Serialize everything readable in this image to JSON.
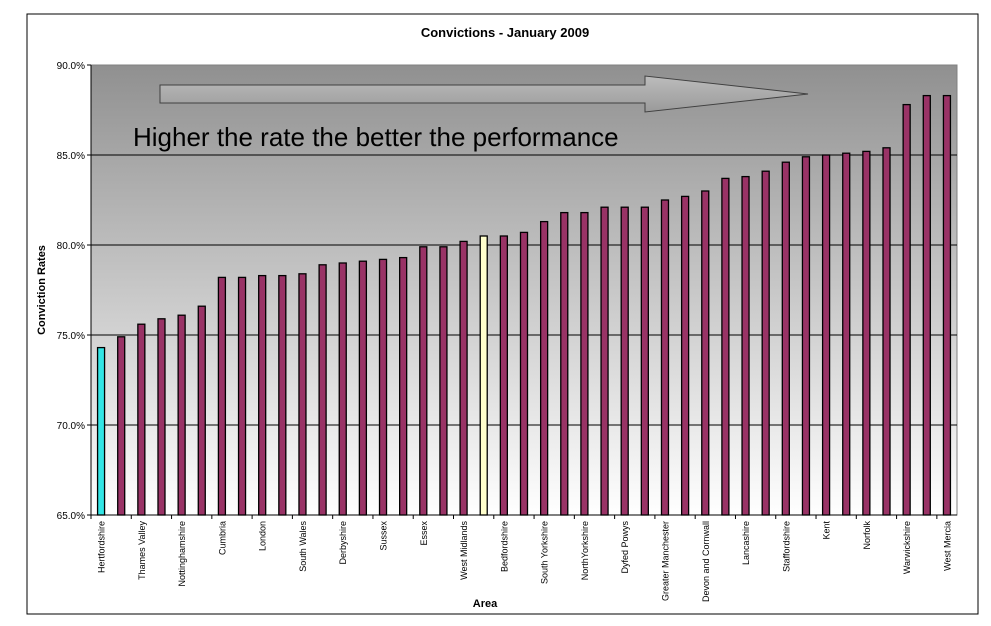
{
  "chart_data": {
    "type": "bar",
    "title": "Convictions - January 2009",
    "xlabel": "Area",
    "ylabel": "Conviction Rates",
    "annotation": "Higher the rate the better the performance",
    "ylim": [
      65.0,
      90.0
    ],
    "yticks": [
      65.0,
      70.0,
      75.0,
      80.0,
      85.0,
      90.0
    ],
    "ytick_labels": [
      "65.0%",
      "70.0%",
      "75.0%",
      "80.0%",
      "85.0%",
      "90.0%"
    ],
    "grid": true,
    "legend": "none",
    "colors": {
      "bar": "#993366",
      "highlight_low": "#33e5e5",
      "highlight_mid": "#ffffcc",
      "bar_outline": "#000000",
      "plot_top": "#909090",
      "plot_bottom": "#ffffff",
      "arrow": "#a0a0a0"
    },
    "categories": [
      "Hertfordshire",
      "",
      "Thames Valley",
      "",
      "Nottinghamshire",
      "",
      "Cumbria",
      "",
      "London",
      "",
      "South Wales",
      "",
      "Derbyshire",
      "",
      "Sussex",
      "",
      "Essex",
      "",
      "West Midlands",
      "",
      "Bedfordshire",
      "",
      "South Yorkshire",
      "",
      "NorthYorkshire",
      "",
      "Dyfed Powys",
      "",
      "Greater Manchester",
      "",
      "Devon and Cornwall",
      "",
      "Lancashire",
      "",
      "Staffordshire",
      "",
      "Kent",
      "",
      "Norfolk",
      "",
      "Warwickshire",
      "",
      "West Mercia"
    ],
    "values": [
      74.3,
      74.9,
      75.6,
      75.9,
      76.1,
      76.6,
      78.2,
      78.2,
      78.3,
      78.3,
      78.4,
      78.9,
      79.0,
      79.1,
      79.2,
      79.3,
      79.9,
      79.9,
      80.2,
      80.5,
      80.5,
      80.7,
      81.3,
      81.8,
      81.8,
      82.1,
      82.1,
      82.1,
      82.5,
      82.7,
      83.0,
      83.7,
      83.8,
      84.1,
      84.6,
      84.9,
      85.0,
      85.1,
      85.2,
      85.4,
      87.8,
      88.3,
      88.3
    ],
    "highlights": [
      {
        "index": 0,
        "color": "#33e5e5"
      },
      {
        "index": 19,
        "color": "#ffffcc"
      }
    ]
  }
}
